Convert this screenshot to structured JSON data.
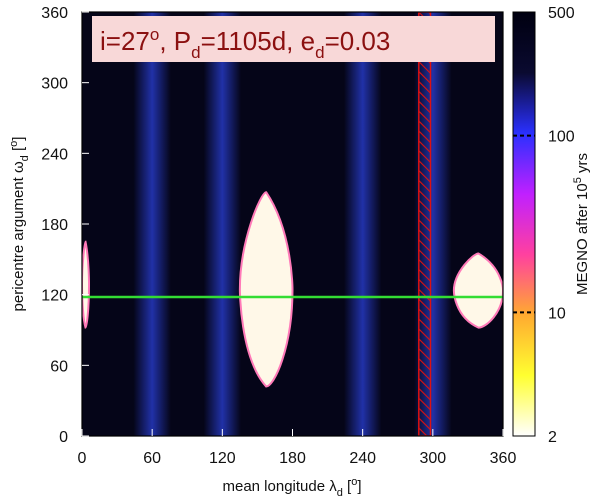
{
  "chart_data": {
    "type": "heatmap",
    "title": "i=27°, P_d=1105d, e_d=0.03",
    "title_parts": {
      "i_prefix": "i=27",
      "i_sup": "o",
      "p_prefix": ", P",
      "p_sub": "d",
      "p_value": "=1105d, e",
      "e_sub": "d",
      "e_value": "=0.03"
    },
    "xlabel": "mean longitude λd [°]",
    "xlabel_parts": {
      "main": "mean longitude λ",
      "sub": "d",
      "bracket_open": " [",
      "sup": "o",
      "bracket_close": "]"
    },
    "ylabel": "pericentre argument ωd [°]",
    "ylabel_parts": {
      "main": "pericentre argument ω",
      "sub": "d",
      "bracket_open": " [",
      "sup": "o",
      "bracket_close": "]"
    },
    "xlim": [
      0,
      360
    ],
    "ylim": [
      0,
      360
    ],
    "x_ticks": [
      "0",
      "60",
      "120",
      "180",
      "240",
      "300",
      "360"
    ],
    "y_ticks": [
      "0",
      "60",
      "120",
      "180",
      "240",
      "300",
      "360"
    ],
    "x_tick_values": [
      0,
      60,
      120,
      180,
      240,
      300,
      360
    ],
    "y_tick_values": [
      0,
      60,
      120,
      180,
      240,
      300,
      360
    ],
    "colorbar": {
      "label": "MEGNO after 10^5 yrs",
      "label_parts": {
        "main": "MEGNO after 10",
        "sup": "5",
        "end": " yrs"
      },
      "scale": "log",
      "range": [
        2,
        500
      ],
      "ticks": [
        "2",
        "10",
        "100",
        "500"
      ],
      "tick_values": [
        2,
        10,
        100,
        500
      ],
      "colors": [
        "#ffffff",
        "#ffff30",
        "#ffaa30",
        "#ff40a0",
        "#c020ff",
        "#2a30ff",
        "#0a0a30",
        "#000010"
      ]
    },
    "stable_regions": [
      {
        "lon": [
          0,
          6
        ],
        "omega": [
          92,
          165
        ]
      },
      {
        "lon": [
          135,
          180
        ],
        "omega": [
          42,
          207
        ]
      },
      {
        "lon": [
          318,
          360
        ],
        "omega": [
          92,
          155
        ]
      }
    ],
    "chaotic_bands_lon": [
      60,
      120,
      240,
      300
    ],
    "reference_line": {
      "omega": 118,
      "color": "#33dd33"
    },
    "hatched_band": {
      "lon": [
        288,
        298
      ],
      "color": "#dd1111"
    },
    "grid": false,
    "legend": "none"
  }
}
